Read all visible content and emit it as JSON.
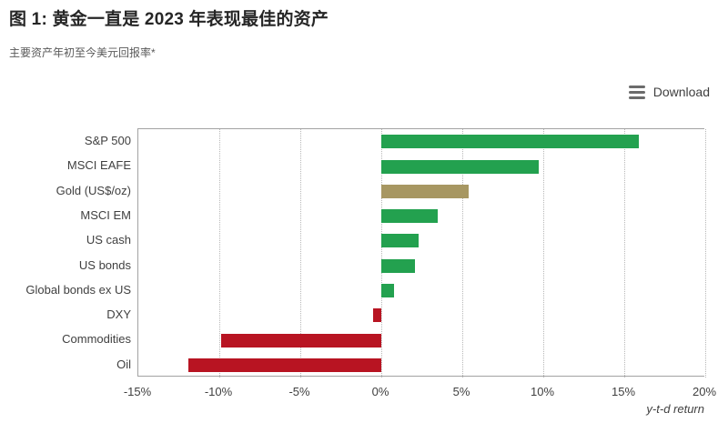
{
  "header": {
    "title": "图 1:  黄金一直是 2023 年表现最佳的资产",
    "subtitle": "主要资产年初至今美元回报率*"
  },
  "toolbar": {
    "download_label": "Download",
    "download_icon": "hamburger-menu-icon"
  },
  "chart_data": {
    "type": "bar",
    "orientation": "horizontal",
    "title": "图 1:  黄金一直是 2023 年表现最佳的资产",
    "subtitle": "主要资产年初至今美元回报率*",
    "xlabel": "y-t-d return",
    "xlim": [
      -15,
      20
    ],
    "grid": "dotted-vertical",
    "legend": "none",
    "categories": [
      "S&P 500",
      "MSCI EAFE",
      "Gold (US$/oz)",
      "MSCI EM",
      "US cash",
      "US bonds",
      "Global bonds ex US",
      "DXY",
      "Commodities",
      "Oil"
    ],
    "values": [
      15.9,
      9.7,
      5.4,
      3.5,
      2.3,
      2.1,
      0.8,
      -0.5,
      -9.9,
      -11.9
    ],
    "bar_colors": [
      "#23A14F",
      "#23A14F",
      "#A79762",
      "#23A14F",
      "#23A14F",
      "#23A14F",
      "#23A14F",
      "#B81422",
      "#B81422",
      "#B81422"
    ],
    "tick_values": [
      -15,
      -10,
      -5,
      0,
      5,
      10,
      15,
      20
    ],
    "tick_labels": [
      "-15%",
      "-10%",
      "-5%",
      "0%",
      "5%",
      "10%",
      "15%",
      "20%"
    ]
  },
  "colors": {
    "positive_green": "#23A14F",
    "gold_tan": "#A79762",
    "negative_red": "#B81422",
    "axis_border": "#a3a3a3",
    "gridline": "#b8b8b8",
    "text_dark": "#262626",
    "text_gray": "#595959"
  }
}
